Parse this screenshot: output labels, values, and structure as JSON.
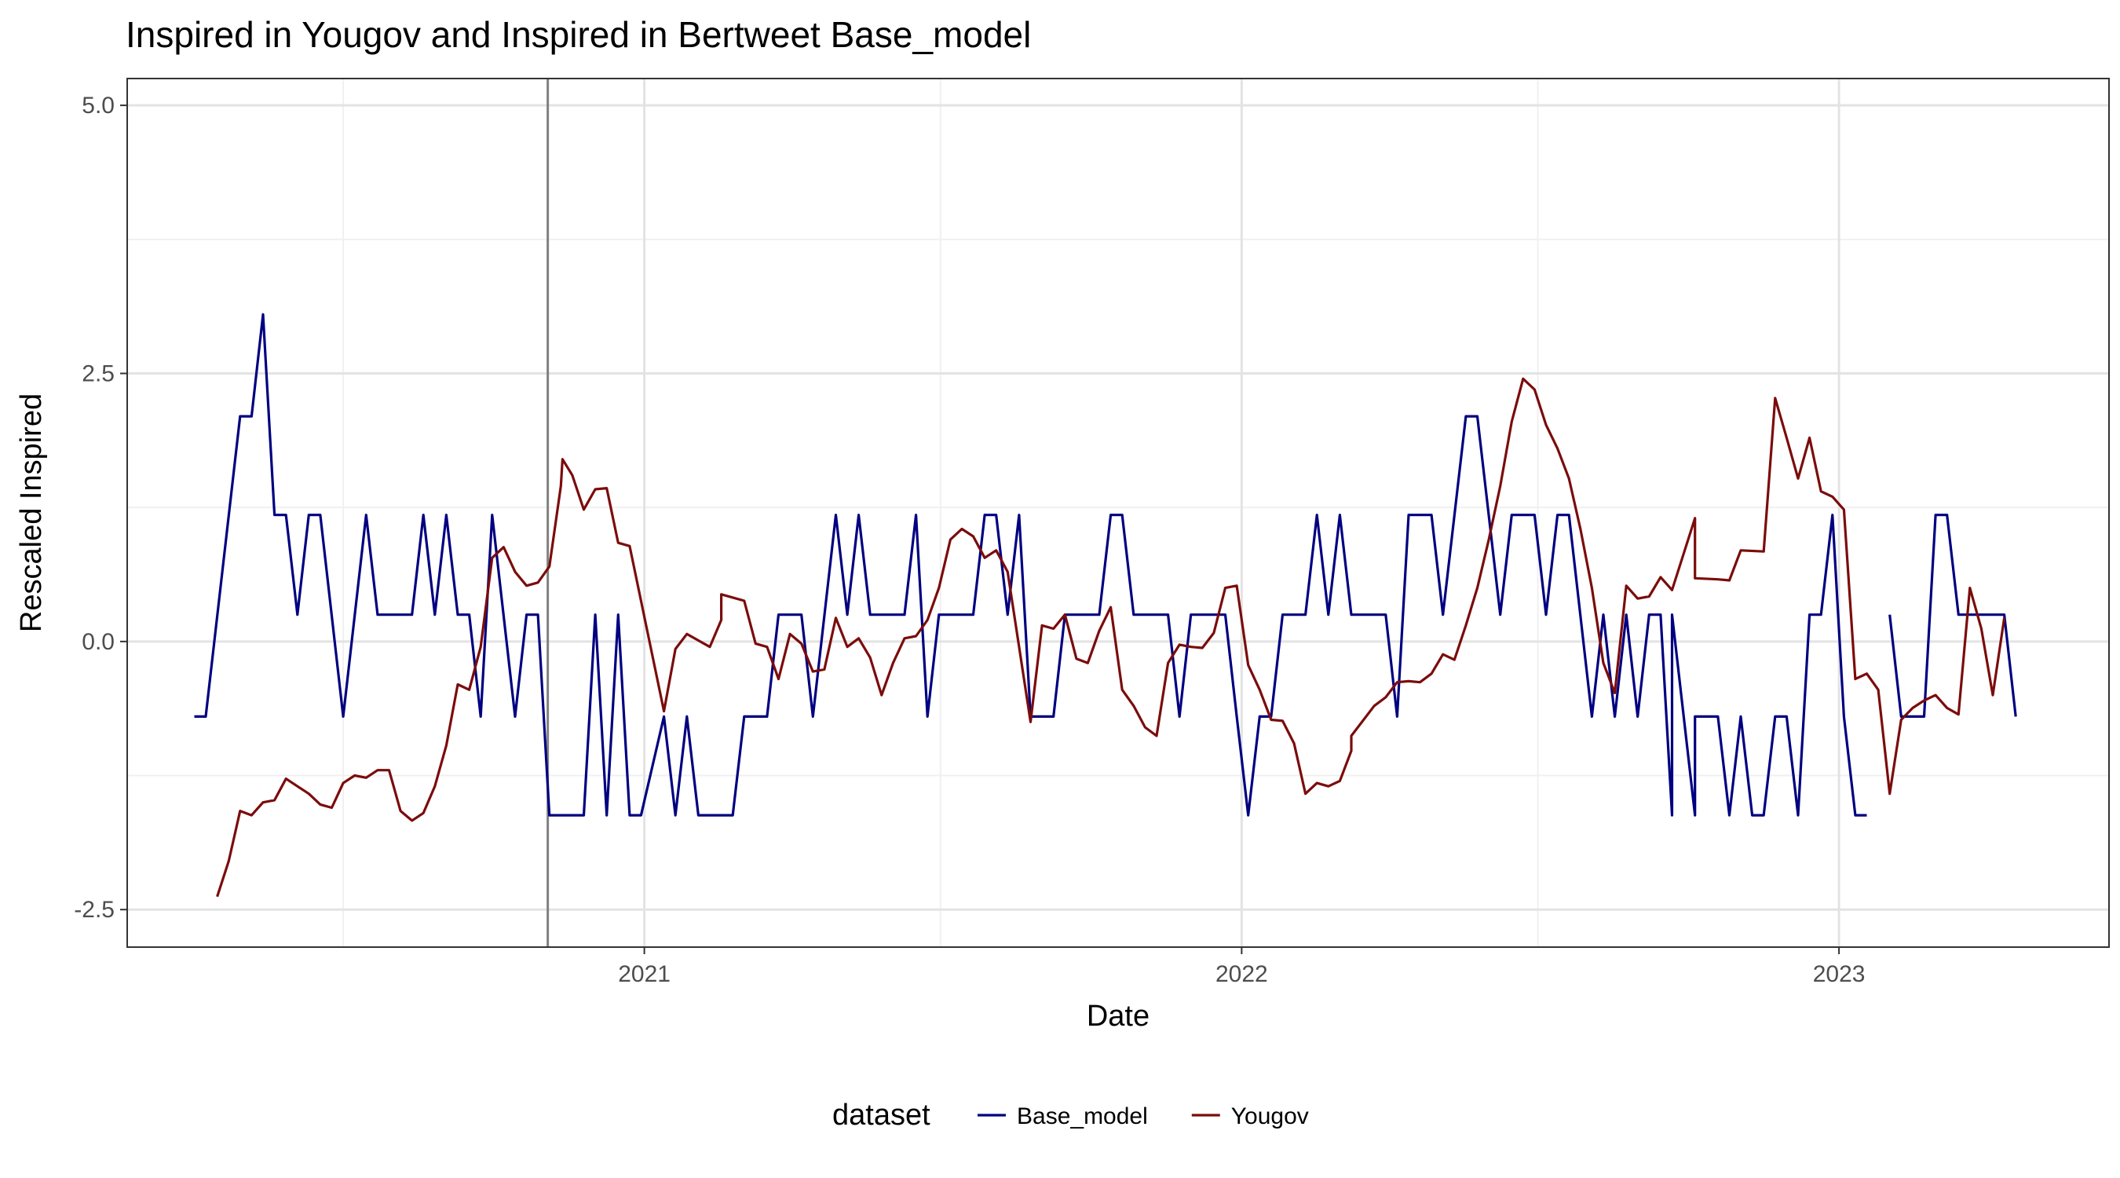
{
  "chart_data": {
    "type": "line",
    "title": "Inspired  in Yougov and  Inspired  in Bertweet  Base_model",
    "xlabel": "Date",
    "ylabel": "Rescaled  Inspired",
    "x_ticks": [
      "2021",
      "2022",
      "2023"
    ],
    "y_ticks": [
      "-2.5",
      "0.0",
      "2.5",
      "5.0"
    ],
    "xlim": [
      "2020-02-20",
      "2023-06-15"
    ],
    "ylim": [
      -2.85,
      5.25
    ],
    "grid": true,
    "legend": {
      "title": "dataset",
      "position": "bottom"
    },
    "reference_line_x": "2020-11-03",
    "series": [
      {
        "name": "Base_model",
        "color": "#000080",
        "points": [
          [
            "2020-04-01",
            -0.7
          ],
          [
            "2020-04-08",
            -0.7
          ],
          [
            "2020-04-29",
            2.1
          ],
          [
            "2020-05-06",
            2.1
          ],
          [
            "2020-05-13",
            3.05
          ],
          [
            "2020-05-20",
            1.18
          ],
          [
            "2020-05-27",
            1.18
          ],
          [
            "2020-06-03",
            0.25
          ],
          [
            "2020-06-10",
            1.18
          ],
          [
            "2020-06-17",
            1.18
          ],
          [
            "2020-07-01",
            -0.7
          ],
          [
            "2020-07-15",
            1.18
          ],
          [
            "2020-07-22",
            0.25
          ],
          [
            "2020-08-12",
            0.25
          ],
          [
            "2020-08-19",
            1.18
          ],
          [
            "2020-08-26",
            0.25
          ],
          [
            "2020-09-02",
            1.18
          ],
          [
            "2020-09-09",
            0.25
          ],
          [
            "2020-09-16",
            0.25
          ],
          [
            "2020-09-23",
            -0.7
          ],
          [
            "2020-09-30",
            1.18
          ],
          [
            "2020-10-14",
            -0.7
          ],
          [
            "2020-10-21",
            0.25
          ],
          [
            "2020-10-28",
            0.25
          ],
          [
            "2020-11-04",
            -1.62
          ],
          [
            "2020-11-25",
            -1.62
          ],
          [
            "2020-12-02",
            0.25
          ],
          [
            "2020-12-09",
            -1.62
          ],
          [
            "2020-12-16",
            0.25
          ],
          [
            "2020-12-23",
            -1.62
          ],
          [
            "2020-12-30",
            -1.62
          ],
          [
            "2021-01-13",
            -0.7
          ],
          [
            "2021-01-20",
            -1.62
          ],
          [
            "2021-01-27",
            -0.7
          ],
          [
            "2021-02-03",
            -1.62
          ],
          [
            "2021-02-17",
            -1.62
          ],
          [
            "2021-02-24",
            -1.62
          ],
          [
            "2021-03-03",
            -0.7
          ],
          [
            "2021-03-17",
            -0.7
          ],
          [
            "2021-03-24",
            0.25
          ],
          [
            "2021-04-07",
            0.25
          ],
          [
            "2021-04-14",
            -0.7
          ],
          [
            "2021-04-28",
            1.18
          ],
          [
            "2021-05-05",
            0.25
          ],
          [
            "2021-05-12",
            1.18
          ],
          [
            "2021-05-19",
            0.25
          ],
          [
            "2021-06-09",
            0.25
          ],
          [
            "2021-06-16",
            1.18
          ],
          [
            "2021-06-23",
            -0.7
          ],
          [
            "2021-06-30",
            0.25
          ],
          [
            "2021-07-21",
            0.25
          ],
          [
            "2021-07-28",
            1.18
          ],
          [
            "2021-08-04",
            1.18
          ],
          [
            "2021-08-11",
            0.25
          ],
          [
            "2021-08-18",
            1.18
          ],
          [
            "2021-08-25",
            -0.7
          ],
          [
            "2021-09-08",
            -0.7
          ],
          [
            "2021-09-15",
            0.25
          ],
          [
            "2021-10-06",
            0.25
          ],
          [
            "2021-10-13",
            1.18
          ],
          [
            "2021-10-20",
            1.18
          ],
          [
            "2021-10-27",
            0.25
          ],
          [
            "2021-11-17",
            0.25
          ],
          [
            "2021-11-24",
            -0.7
          ],
          [
            "2021-12-01",
            0.25
          ],
          [
            "2021-12-22",
            0.25
          ],
          [
            "2021-12-29",
            -0.7
          ],
          [
            "2022-01-05",
            -1.62
          ],
          [
            "2022-01-12",
            -0.7
          ],
          [
            "2022-01-19",
            -0.7
          ],
          [
            "2022-01-26",
            0.25
          ],
          [
            "2022-02-09",
            0.25
          ],
          [
            "2022-02-16",
            1.18
          ],
          [
            "2022-02-23",
            0.25
          ],
          [
            "2022-03-02",
            1.18
          ],
          [
            "2022-03-09",
            0.25
          ],
          [
            "2022-03-30",
            0.25
          ],
          [
            "2022-04-06",
            -0.7
          ],
          [
            "2022-04-13",
            1.18
          ],
          [
            "2022-04-27",
            1.18
          ],
          [
            "2022-05-04",
            0.25
          ],
          [
            "2022-05-18",
            2.1
          ],
          [
            "2022-05-25",
            2.1
          ],
          [
            "2022-06-08",
            0.25
          ],
          [
            "2022-06-15",
            1.18
          ],
          [
            "2022-06-29",
            1.18
          ],
          [
            "2022-07-06",
            0.25
          ],
          [
            "2022-07-13",
            1.18
          ],
          [
            "2022-07-20",
            1.18
          ],
          [
            "2022-08-03",
            -0.7
          ],
          [
            "2022-08-10",
            0.25
          ],
          [
            "2022-08-17",
            -0.7
          ],
          [
            "2022-08-24",
            0.25
          ],
          [
            "2022-08-31",
            -0.7
          ],
          [
            "2022-09-07",
            0.25
          ],
          [
            "2022-09-14",
            0.25
          ],
          [
            "2022-09-21",
            -1.62
          ],
          [
            "2022-09-21",
            0.25
          ],
          [
            "2022-10-05",
            -1.62
          ],
          [
            "2022-10-05",
            -0.7
          ],
          [
            "2022-10-19",
            -0.7
          ],
          [
            "2022-10-26",
            -1.62
          ],
          [
            "2022-11-02",
            -0.7
          ],
          [
            "2022-11-09",
            -1.62
          ],
          [
            "2022-11-16",
            -1.62
          ],
          [
            "2022-11-23",
            -0.7
          ],
          [
            "2022-11-30",
            -0.7
          ],
          [
            "2022-12-07",
            -1.62
          ],
          [
            "2022-12-14",
            0.25
          ],
          [
            "2022-12-21",
            0.25
          ],
          [
            "2022-12-28",
            1.18
          ],
          [
            "2023-01-04",
            -0.7
          ],
          [
            "2023-01-11",
            -1.62
          ],
          [
            "2023-01-18",
            -1.62
          ]
        ]
      },
      {
        "name": "Base_model",
        "color": "#000080",
        "points": [
          [
            "2023-02-01",
            0.25
          ],
          [
            "2023-02-08",
            -0.7
          ],
          [
            "2023-02-22",
            -0.7
          ],
          [
            "2023-03-01",
            1.18
          ],
          [
            "2023-03-08",
            1.18
          ],
          [
            "2023-03-15",
            0.25
          ],
          [
            "2023-04-12",
            0.25
          ],
          [
            "2023-04-19",
            -0.7
          ]
        ]
      },
      {
        "name": "Yougov",
        "color": "#7b0c0c",
        "points": [
          [
            "2020-04-15",
            -2.38
          ],
          [
            "2020-04-22",
            -2.05
          ],
          [
            "2020-04-29",
            -1.58
          ],
          [
            "2020-05-06",
            -1.62
          ],
          [
            "2020-05-13",
            -1.5
          ],
          [
            "2020-05-20",
            -1.48
          ],
          [
            "2020-05-27",
            -1.28
          ],
          [
            "2020-06-03",
            -1.35
          ],
          [
            "2020-06-10",
            -1.42
          ],
          [
            "2020-06-17",
            -1.52
          ],
          [
            "2020-06-24",
            -1.55
          ],
          [
            "2020-07-01",
            -1.32
          ],
          [
            "2020-07-08",
            -1.25
          ],
          [
            "2020-07-15",
            -1.27
          ],
          [
            "2020-07-22",
            -1.2
          ],
          [
            "2020-07-29",
            -1.2
          ],
          [
            "2020-08-05",
            -1.58
          ],
          [
            "2020-08-12",
            -1.67
          ],
          [
            "2020-08-19",
            -1.6
          ],
          [
            "2020-08-26",
            -1.35
          ],
          [
            "2020-09-02",
            -0.97
          ],
          [
            "2020-09-09",
            -0.4
          ],
          [
            "2020-09-16",
            -0.45
          ],
          [
            "2020-09-23",
            -0.05
          ],
          [
            "2020-09-30",
            0.78
          ],
          [
            "2020-10-07",
            0.88
          ],
          [
            "2020-10-14",
            0.65
          ],
          [
            "2020-10-21",
            0.52
          ],
          [
            "2020-10-28",
            0.55
          ],
          [
            "2020-11-04",
            0.7
          ],
          [
            "2020-11-11",
            1.45
          ],
          [
            "2020-11-12",
            1.7
          ],
          [
            "2020-11-18",
            1.55
          ],
          [
            "2020-11-25",
            1.23
          ],
          [
            "2020-12-02",
            1.42
          ],
          [
            "2020-12-09",
            1.43
          ],
          [
            "2020-12-16",
            0.92
          ],
          [
            "2020-12-23",
            0.89
          ],
          [
            "2021-01-13",
            -0.65
          ],
          [
            "2021-01-20",
            -0.07
          ],
          [
            "2021-01-27",
            0.07
          ],
          [
            "2021-02-10",
            -0.05
          ],
          [
            "2021-02-17",
            0.2
          ],
          [
            "2021-02-17",
            0.44
          ],
          [
            "2021-03-03",
            0.38
          ],
          [
            "2021-03-10",
            -0.02
          ],
          [
            "2021-03-17",
            -0.05
          ],
          [
            "2021-03-24",
            -0.35
          ],
          [
            "2021-03-31",
            0.07
          ],
          [
            "2021-04-07",
            -0.02
          ],
          [
            "2021-04-14",
            -0.28
          ],
          [
            "2021-04-21",
            -0.26
          ],
          [
            "2021-04-28",
            0.22
          ],
          [
            "2021-05-05",
            -0.05
          ],
          [
            "2021-05-12",
            0.03
          ],
          [
            "2021-05-19",
            -0.15
          ],
          [
            "2021-05-26",
            -0.5
          ],
          [
            "2021-06-02",
            -0.2
          ],
          [
            "2021-06-09",
            0.03
          ],
          [
            "2021-06-16",
            0.05
          ],
          [
            "2021-06-23",
            0.2
          ],
          [
            "2021-06-30",
            0.5
          ],
          [
            "2021-07-07",
            0.95
          ],
          [
            "2021-07-14",
            1.05
          ],
          [
            "2021-07-21",
            0.98
          ],
          [
            "2021-07-28",
            0.78
          ],
          [
            "2021-08-04",
            0.85
          ],
          [
            "2021-08-11",
            0.65
          ],
          [
            "2021-08-25",
            -0.75
          ],
          [
            "2021-09-01",
            0.15
          ],
          [
            "2021-09-08",
            0.12
          ],
          [
            "2021-09-15",
            0.25
          ],
          [
            "2021-09-22",
            -0.16
          ],
          [
            "2021-09-29",
            -0.2
          ],
          [
            "2021-10-06",
            0.1
          ],
          [
            "2021-10-13",
            0.32
          ],
          [
            "2021-10-20",
            -0.45
          ],
          [
            "2021-10-27",
            -0.6
          ],
          [
            "2021-11-03",
            -0.8
          ],
          [
            "2021-11-10",
            -0.88
          ],
          [
            "2021-11-17",
            -0.2
          ],
          [
            "2021-11-24",
            -0.03
          ],
          [
            "2021-12-01",
            -0.05
          ],
          [
            "2021-12-08",
            -0.06
          ],
          [
            "2021-12-15",
            0.08
          ],
          [
            "2021-12-22",
            0.5
          ],
          [
            "2021-12-29",
            0.52
          ],
          [
            "2022-01-05",
            -0.22
          ],
          [
            "2022-01-12",
            -0.45
          ],
          [
            "2022-01-19",
            -0.73
          ],
          [
            "2022-01-26",
            -0.74
          ],
          [
            "2022-02-02",
            -0.95
          ],
          [
            "2022-02-09",
            -1.42
          ],
          [
            "2022-02-16",
            -1.32
          ],
          [
            "2022-02-23",
            -1.35
          ],
          [
            "2022-03-02",
            -1.3
          ],
          [
            "2022-03-09",
            -1.02
          ],
          [
            "2022-03-09",
            -0.88
          ],
          [
            "2022-03-23",
            -0.6
          ],
          [
            "2022-03-30",
            -0.52
          ],
          [
            "2022-04-06",
            -0.38
          ],
          [
            "2022-04-13",
            -0.37
          ],
          [
            "2022-04-20",
            -0.38
          ],
          [
            "2022-04-27",
            -0.3
          ],
          [
            "2022-05-04",
            -0.12
          ],
          [
            "2022-05-11",
            -0.17
          ],
          [
            "2022-05-18",
            0.15
          ],
          [
            "2022-05-25",
            0.5
          ],
          [
            "2022-06-01",
            0.95
          ],
          [
            "2022-06-08",
            1.45
          ],
          [
            "2022-06-15",
            2.05
          ],
          [
            "2022-06-22",
            2.45
          ],
          [
            "2022-06-29",
            2.35
          ],
          [
            "2022-07-06",
            2.02
          ],
          [
            "2022-07-13",
            1.8
          ],
          [
            "2022-07-20",
            1.52
          ],
          [
            "2022-07-27",
            1.05
          ],
          [
            "2022-08-03",
            0.5
          ],
          [
            "2022-08-10",
            -0.2
          ],
          [
            "2022-08-17",
            -0.48
          ],
          [
            "2022-08-24",
            0.52
          ],
          [
            "2022-08-31",
            0.4
          ],
          [
            "2022-09-07",
            0.42
          ],
          [
            "2022-09-14",
            0.6
          ],
          [
            "2022-09-21",
            0.48
          ],
          [
            "2022-10-05",
            1.15
          ],
          [
            "2022-10-05",
            0.59
          ],
          [
            "2022-10-19",
            0.58
          ],
          [
            "2022-10-26",
            0.57
          ],
          [
            "2022-11-02",
            0.85
          ],
          [
            "2022-11-16",
            0.84
          ],
          [
            "2022-11-23",
            2.27
          ],
          [
            "2022-11-30",
            1.9
          ],
          [
            "2022-12-07",
            1.52
          ],
          [
            "2022-12-14",
            1.9
          ],
          [
            "2022-12-21",
            1.4
          ],
          [
            "2022-12-28",
            1.35
          ],
          [
            "2023-01-04",
            1.23
          ],
          [
            "2023-01-11",
            -0.35
          ],
          [
            "2023-01-18",
            -0.3
          ],
          [
            "2023-01-25",
            -0.45
          ],
          [
            "2023-02-01",
            -1.42
          ],
          [
            "2023-02-08",
            -0.73
          ],
          [
            "2023-02-15",
            -0.62
          ],
          [
            "2023-02-22",
            -0.55
          ],
          [
            "2023-03-01",
            -0.5
          ],
          [
            "2023-03-08",
            -0.62
          ],
          [
            "2023-03-15",
            -0.68
          ],
          [
            "2023-03-22",
            0.5
          ],
          [
            "2023-03-29",
            0.12
          ],
          [
            "2023-04-05",
            -0.5
          ],
          [
            "2023-04-12",
            0.22
          ]
        ]
      }
    ]
  }
}
